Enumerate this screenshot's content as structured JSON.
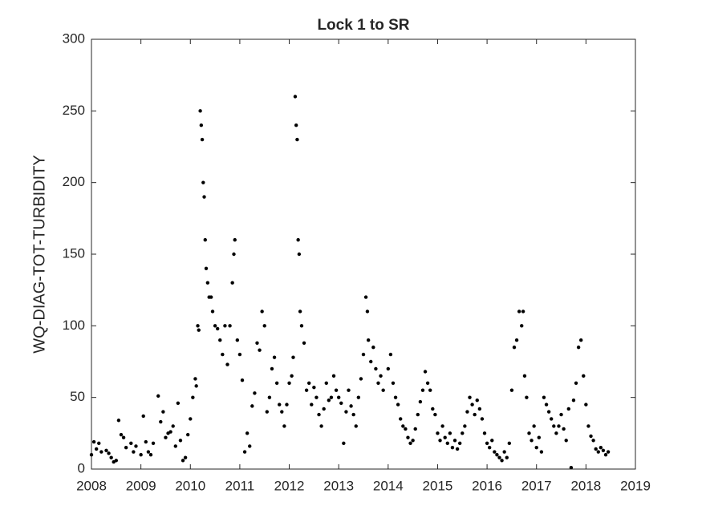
{
  "chart_data": {
    "type": "scatter",
    "title": "Lock 1 to SR",
    "y_label": "WQ-DIAG-TOT-TURBIDITY",
    "color": "#000000",
    "xlim": [
      2008,
      2019
    ],
    "xticks": [
      2008,
      2009,
      2010,
      2011,
      2012,
      2013,
      2014,
      2015,
      2016,
      2017,
      2018,
      2019
    ],
    "ylim": [
      0,
      300
    ],
    "yticks": [
      0,
      50,
      100,
      150,
      200,
      250,
      300
    ],
    "x": [
      2008.0,
      2008.05,
      2008.1,
      2008.15,
      2008.2,
      2008.3,
      2008.35,
      2008.4,
      2008.45,
      2008.5,
      2008.55,
      2008.6,
      2008.65,
      2008.7,
      2008.8,
      2008.85,
      2008.9,
      2009.0,
      2009.05,
      2009.1,
      2009.15,
      2009.2,
      2009.25,
      2009.35,
      2009.4,
      2009.45,
      2009.5,
      2009.55,
      2009.6,
      2009.65,
      2009.7,
      2009.75,
      2009.8,
      2009.85,
      2009.9,
      2009.95,
      2010.0,
      2010.05,
      2010.1,
      2010.12,
      2010.15,
      2010.17,
      2010.2,
      2010.22,
      2010.24,
      2010.26,
      2010.28,
      2010.3,
      2010.32,
      2010.35,
      2010.38,
      2010.42,
      2010.45,
      2010.5,
      2010.55,
      2010.6,
      2010.65,
      2010.7,
      2010.75,
      2010.8,
      2010.85,
      2010.88,
      2010.9,
      2010.95,
      2011.0,
      2011.05,
      2011.1,
      2011.15,
      2011.2,
      2011.25,
      2011.3,
      2011.35,
      2011.4,
      2011.45,
      2011.5,
      2011.55,
      2011.6,
      2011.65,
      2011.7,
      2011.75,
      2011.8,
      2011.85,
      2011.9,
      2011.95,
      2012.0,
      2012.05,
      2012.08,
      2012.12,
      2012.14,
      2012.16,
      2012.18,
      2012.2,
      2012.22,
      2012.25,
      2012.3,
      2012.35,
      2012.4,
      2012.45,
      2012.5,
      2012.55,
      2012.6,
      2012.65,
      2012.7,
      2012.75,
      2012.8,
      2012.85,
      2012.9,
      2012.95,
      2013.0,
      2013.05,
      2013.1,
      2013.15,
      2013.2,
      2013.25,
      2013.3,
      2013.35,
      2013.4,
      2013.45,
      2013.5,
      2013.55,
      2013.58,
      2013.6,
      2013.65,
      2013.7,
      2013.75,
      2013.8,
      2013.85,
      2013.9,
      2014.0,
      2014.05,
      2014.1,
      2014.15,
      2014.2,
      2014.25,
      2014.3,
      2014.35,
      2014.4,
      2014.45,
      2014.5,
      2014.55,
      2014.6,
      2014.65,
      2014.7,
      2014.75,
      2014.8,
      2014.85,
      2014.9,
      2014.95,
      2015.0,
      2015.05,
      2015.1,
      2015.15,
      2015.2,
      2015.25,
      2015.3,
      2015.35,
      2015.4,
      2015.45,
      2015.5,
      2015.55,
      2015.6,
      2015.65,
      2015.7,
      2015.75,
      2015.8,
      2015.85,
      2015.9,
      2015.95,
      2016.0,
      2016.05,
      2016.1,
      2016.15,
      2016.2,
      2016.25,
      2016.3,
      2016.35,
      2016.4,
      2016.45,
      2016.5,
      2016.55,
      2016.6,
      2016.65,
      2016.7,
      2016.73,
      2016.76,
      2016.8,
      2016.85,
      2016.9,
      2016.95,
      2017.0,
      2017.05,
      2017.1,
      2017.15,
      2017.2,
      2017.25,
      2017.3,
      2017.35,
      2017.4,
      2017.45,
      2017.5,
      2017.55,
      2017.6,
      2017.65,
      2017.7,
      2017.75,
      2017.8,
      2017.85,
      2017.9,
      2017.95,
      2018.0,
      2018.05,
      2018.1,
      2018.15,
      2018.2,
      2018.25,
      2018.3,
      2018.35,
      2018.4,
      2018.45
    ],
    "values": [
      10,
      19,
      14,
      18,
      12,
      13,
      11,
      8,
      5,
      6,
      34,
      24,
      22,
      15,
      18,
      12,
      16,
      10,
      37,
      19,
      12,
      10,
      18,
      51,
      33,
      40,
      22,
      25,
      26,
      30,
      16,
      46,
      20,
      6,
      8,
      24,
      35,
      50,
      63,
      58,
      100,
      97,
      250,
      240,
      230,
      200,
      190,
      160,
      140,
      130,
      120,
      120,
      110,
      100,
      98,
      90,
      80,
      100,
      73,
      100,
      130,
      150,
      160,
      90,
      80,
      62,
      12,
      25,
      16,
      44,
      53,
      88,
      83,
      110,
      100,
      40,
      50,
      70,
      78,
      60,
      45,
      40,
      30,
      45,
      60,
      65,
      78,
      260,
      240,
      230,
      160,
      150,
      110,
      100,
      88,
      55,
      60,
      45,
      57,
      50,
      38,
      30,
      42,
      60,
      48,
      50,
      65,
      55,
      50,
      46,
      18,
      40,
      55,
      44,
      38,
      30,
      50,
      63,
      80,
      120,
      110,
      90,
      75,
      85,
      70,
      60,
      65,
      55,
      70,
      80,
      60,
      50,
      45,
      35,
      30,
      28,
      22,
      18,
      20,
      28,
      38,
      47,
      55,
      68,
      60,
      55,
      42,
      38,
      25,
      20,
      30,
      22,
      18,
      25,
      15,
      20,
      14,
      18,
      25,
      30,
      40,
      50,
      45,
      38,
      48,
      42,
      35,
      25,
      18,
      15,
      20,
      12,
      10,
      8,
      6,
      12,
      8,
      18,
      55,
      85,
      90,
      110,
      100,
      110,
      65,
      50,
      25,
      20,
      30,
      15,
      22,
      12,
      50,
      45,
      40,
      35,
      30,
      25,
      30,
      38,
      28,
      20,
      42,
      1,
      48,
      60,
      85,
      90,
      65,
      45,
      30,
      23,
      20,
      14,
      12,
      15,
      13,
      10,
      12
    ]
  }
}
